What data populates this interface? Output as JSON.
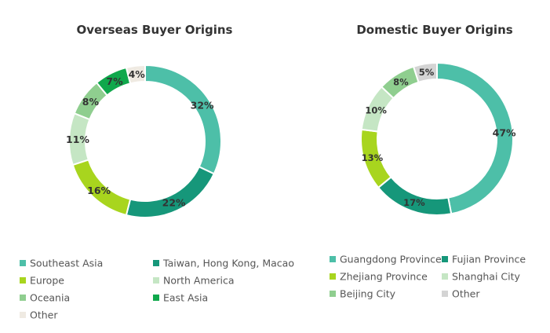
{
  "chart_data": [
    {
      "type": "pie",
      "title": "Overseas Buyer Origins",
      "categories": [
        "Southeast Asia",
        "Taiwan, Hong Kong, Macao",
        "Europe",
        "North America",
        "Oceania",
        "East Asia",
        "Other"
      ],
      "values": [
        32,
        22,
        16,
        11,
        8,
        7,
        4
      ],
      "labels": [
        "32%",
        "22%",
        "16%",
        "11%",
        "8%",
        "7%",
        "4%"
      ],
      "colors": [
        "#4dbfa8",
        "#16977a",
        "#a8d51e",
        "#c5e6c4",
        "#8fce8f",
        "#10a84c",
        "#efeae2"
      ],
      "legend": "bottom"
    },
    {
      "type": "pie",
      "title": "Domestic Buyer Origins",
      "categories": [
        "Guangdong Province",
        "Fujian Province",
        "Zhejiang Province",
        "Shanghai City",
        "Beijing City",
        "Other"
      ],
      "values": [
        47,
        17,
        13,
        10,
        8,
        5
      ],
      "labels": [
        "47%",
        "17%",
        "13%",
        "10%",
        "8%",
        "5%"
      ],
      "colors": [
        "#4dbfa8",
        "#16977a",
        "#a8d51e",
        "#c5e6c4",
        "#8fce8f",
        "#d4d4d4"
      ],
      "legend": "bottom"
    }
  ]
}
